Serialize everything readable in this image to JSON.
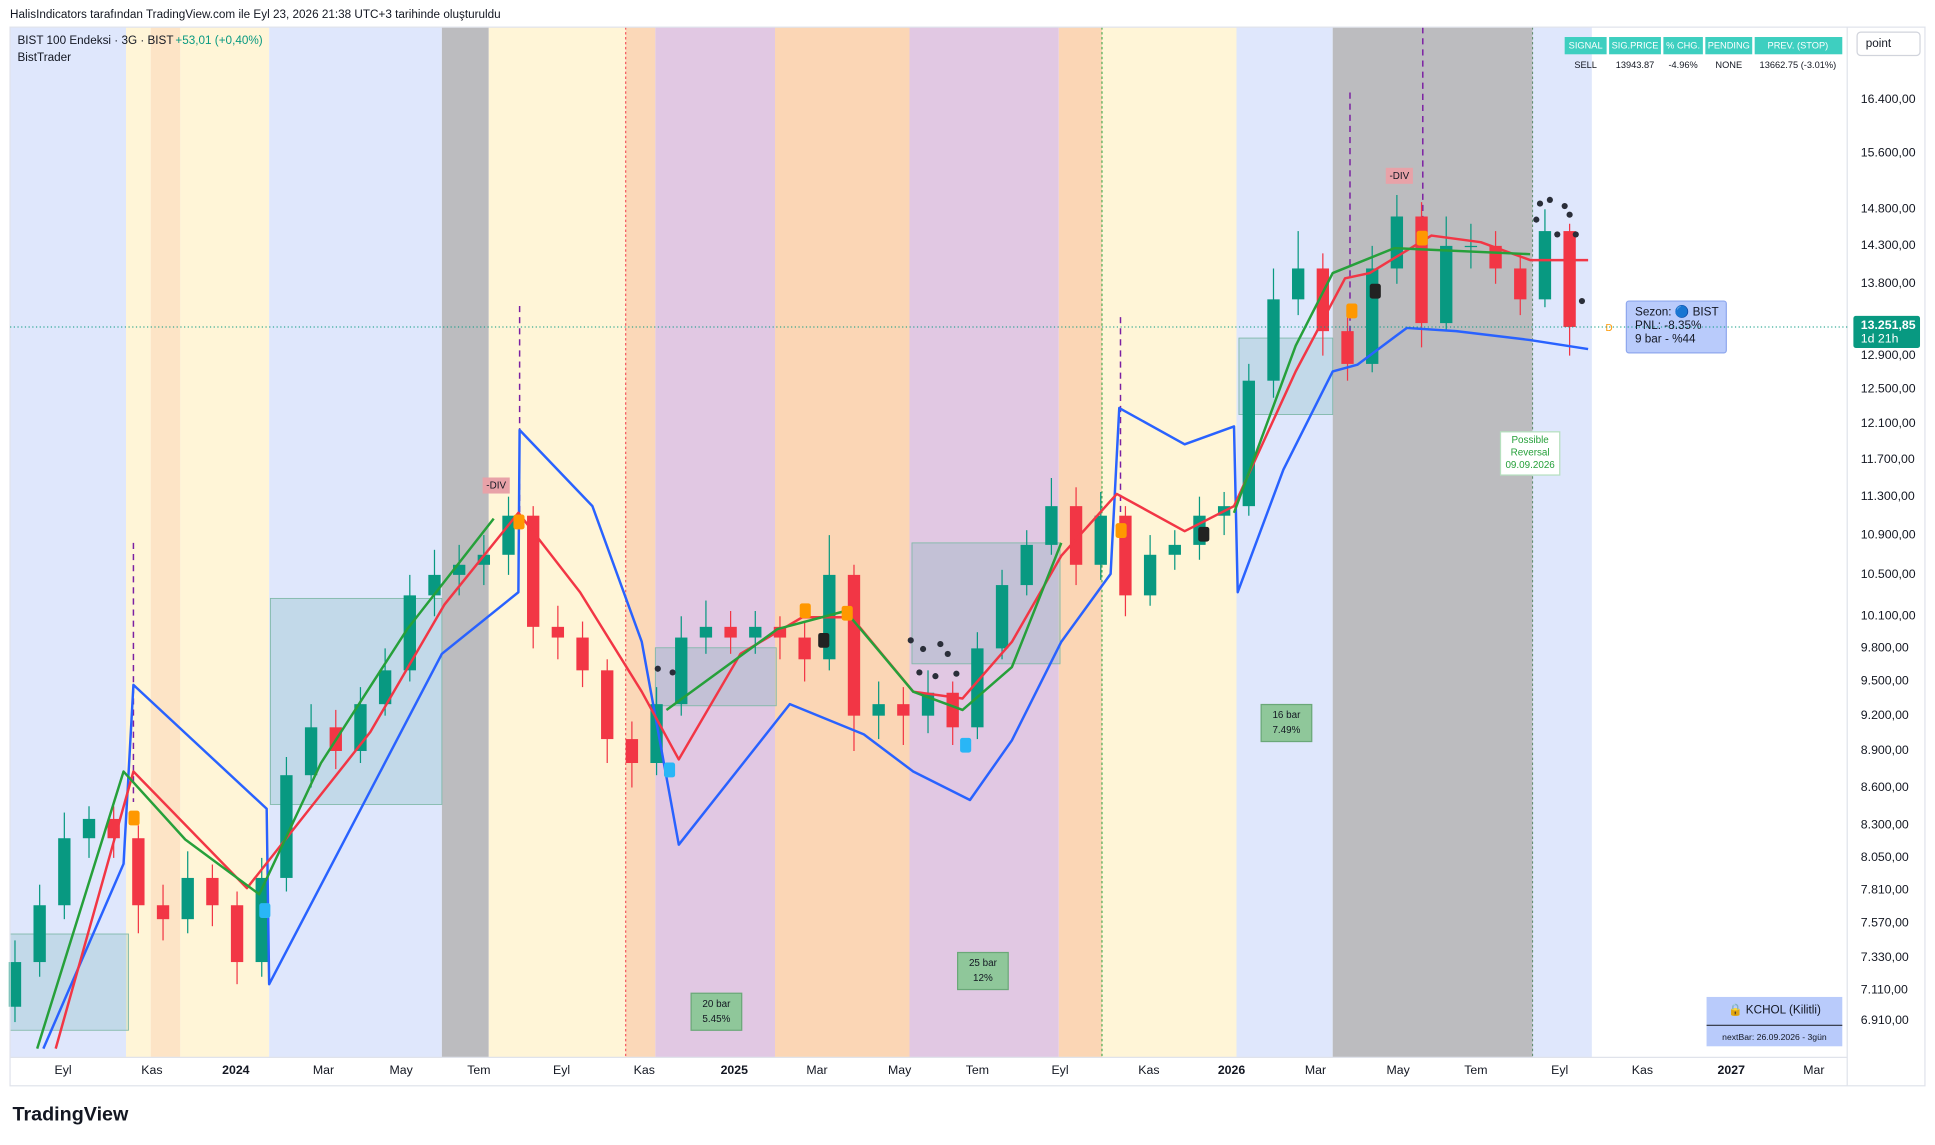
{
  "header": {
    "attribution": "HalisIndicators tarafından TradingView.com ile Eyl 23, 2026 21:38 UTC+3 tarihinde oluşturuldu",
    "symbol": "BIST 100 Endeksi · 3G · BIST",
    "change": "+53,01 (+0,40%)",
    "indicator": "BistTrader"
  },
  "toolbar": {
    "button": "point"
  },
  "signal_table": {
    "headers": [
      "SIGNAL",
      "SIG.PRICE",
      "% CHG.",
      "PENDING",
      "PREV. (STOP)"
    ],
    "row": [
      "SELL",
      "13943.87",
      "-4.96%",
      "NONE",
      "13662.75 (-3.01%)"
    ]
  },
  "annotations": {
    "bar_boxes": [
      [
        "20 bar",
        "5.45%"
      ],
      [
        "25 bar",
        "12%"
      ],
      [
        "16 bar",
        "7.49%"
      ]
    ],
    "divergence": [
      "-DIV",
      "-DIV"
    ],
    "reversal": [
      "Possible",
      "Reversal",
      "09.09.2026"
    ],
    "marker": "D"
  },
  "sezon_box": [
    "Sezon: 🔵 BIST",
    "PNL: -8.35%",
    "9 bar - %44"
  ],
  "lock_box": {
    "title": "🔒 KCHOL (Kilitli)",
    "next_bar": "nextBar:  26.09.2026 - 3gün"
  },
  "footer": {
    "logo": "TradingView"
  },
  "chart_data": {
    "type": "candlestick",
    "log_scale": true,
    "up_color": "#089981",
    "down_color": "#f23645",
    "x": [
      0,
      1,
      2,
      3,
      4,
      5,
      6,
      7,
      8,
      9,
      10,
      11,
      12,
      13,
      14,
      15,
      16,
      17,
      18,
      19,
      20,
      21,
      22,
      23,
      24,
      25,
      26,
      27,
      28,
      29,
      30,
      31,
      32,
      33,
      34,
      35,
      36,
      37,
      38,
      39,
      40,
      41,
      42,
      43,
      44,
      45,
      46,
      47,
      48,
      49,
      50,
      51,
      52,
      53,
      54,
      55,
      56,
      57,
      58,
      59,
      60,
      61,
      62,
      63
    ],
    "open": [
      7000,
      7300,
      7700,
      8200,
      8350,
      8200,
      7700,
      7600,
      7900,
      7700,
      7300,
      7900,
      8700,
      9100,
      8900,
      9300,
      9600,
      10300,
      10500,
      10600,
      10700,
      11100,
      10000,
      9900,
      9600,
      9000,
      8800,
      9300,
      9900,
      10000,
      9900,
      10000,
      9900,
      9700,
      10500,
      9200,
      9300,
      9200,
      9400,
      9100,
      9800,
      10400,
      10800,
      11200,
      10600,
      11100,
      10300,
      10700,
      10800,
      11100,
      11200,
      12600,
      13600,
      14000,
      13200,
      12800,
      14000,
      14700,
      13300,
      14300,
      14300,
      14000,
      13600,
      14500
    ],
    "high": [
      7450,
      7850,
      8400,
      8450,
      8450,
      8300,
      7850,
      8100,
      8000,
      7800,
      8050,
      8850,
      9300,
      9250,
      9450,
      9800,
      10500,
      10750,
      10800,
      10900,
      11300,
      11200,
      10200,
      10050,
      9700,
      9150,
      9450,
      10100,
      10250,
      10150,
      10150,
      10100,
      10050,
      10900,
      10600,
      9500,
      9450,
      9600,
      9500,
      9950,
      10550,
      10950,
      11500,
      11400,
      11350,
      11200,
      10900,
      10950,
      11300,
      11350,
      12800,
      14000,
      14500,
      14200,
      13400,
      14300,
      15000,
      14900,
      14700,
      14600,
      14500,
      14200,
      14800,
      14600
    ],
    "low": [
      6900,
      7200,
      7600,
      8050,
      8050,
      7500,
      7450,
      7500,
      7550,
      7150,
      7200,
      7800,
      8600,
      8750,
      8800,
      9200,
      9500,
      10100,
      10300,
      10400,
      10500,
      9800,
      9700,
      9450,
      8800,
      8600,
      8700,
      9200,
      9750,
      9750,
      9750,
      9700,
      9500,
      9600,
      8900,
      9000,
      8950,
      9050,
      8950,
      9000,
      9700,
      10300,
      10700,
      10400,
      10450,
      10100,
      10200,
      10550,
      10650,
      10900,
      11100,
      12400,
      13400,
      12900,
      12600,
      12700,
      13800,
      13000,
      13200,
      14000,
      13800,
      13400,
      13500,
      12900
    ],
    "close": [
      7300,
      7700,
      8200,
      8350,
      8200,
      7700,
      7600,
      7900,
      7700,
      7300,
      7900,
      8700,
      9100,
      8900,
      9300,
      9600,
      10300,
      10500,
      10600,
      10700,
      11100,
      10000,
      9900,
      9600,
      9000,
      8800,
      9300,
      9900,
      10000,
      9900,
      10000,
      9900,
      9700,
      10500,
      9200,
      9300,
      9200,
      9400,
      9100,
      9800,
      10400,
      10800,
      11200,
      10600,
      11100,
      10300,
      10700,
      10800,
      11100,
      11200,
      12600,
      13600,
      14000,
      13200,
      12800,
      14000,
      14700,
      13300,
      14300,
      14300,
      14000,
      13600,
      14500,
      13251.85
    ],
    "series": [
      {
        "color": "#2962ff",
        "x": [
          1.15,
          4.4,
          4.8,
          10.2,
          10.3,
          17.3,
          20.4,
          20.45,
          23.4,
          25.4,
          26.9,
          31.4,
          34.4,
          36.4,
          38.7,
          40.4,
          42.4,
          44.4,
          44.75,
          47.4,
          49.4,
          49.55,
          51.4,
          53.4,
          54.4,
          56.4,
          58.4,
          61.4,
          63.75
        ],
        "values": [
          6730,
          8005,
          9470,
          8430,
          7150,
          9750,
          10330,
          12030,
          11200,
          9860,
          8150,
          9300,
          9040,
          8730,
          8500,
          8990,
          9860,
          10510,
          12280,
          11870,
          12070,
          10330,
          11590,
          12710,
          12790,
          13240,
          13200,
          13090,
          12980
        ]
      },
      {
        "color": "#f23645",
        "x": [
          1.65,
          4.8,
          9.4,
          14.4,
          17.4,
          20.4,
          22.9,
          25.4,
          26.9,
          29.4,
          31.9,
          33.9,
          36.4,
          38.4,
          40.4,
          42.4,
          44.65,
          47.4,
          49.4,
          51.9,
          53.9,
          54.9,
          57.4,
          59.4,
          61.4,
          63.75
        ],
        "values": [
          6730,
          8730,
          7825,
          9060,
          10210,
          11130,
          10330,
          9410,
          8830,
          9750,
          10090,
          10090,
          9410,
          9350,
          9860,
          10690,
          11330,
          10940,
          11200,
          12710,
          13870,
          13940,
          14440,
          14350,
          14110,
          14110
        ]
      },
      {
        "color": "#26a03a",
        "x": [
          0.9,
          4.4,
          6.9,
          9.9,
          12.4,
          15.9,
          19.4,
          20.4,
          26.4,
          30.9,
          33.65,
          36.4,
          38.4,
          40.4,
          42.4,
          44.6,
          49.4,
          51.9,
          53.4,
          55.9,
          61.4
        ],
        "values": [
          6730,
          8730,
          8190,
          7780,
          8800,
          9980,
          11070,
          null,
          9250,
          9980,
          10150,
          9410,
          9250,
          9630,
          10820,
          null,
          11130,
          13020,
          13940,
          14270,
          14190
        ]
      }
    ],
    "xlim": [
      -0.2,
      74.25
    ],
    "xticks": [
      {
        "value": 1.95,
        "label": "Eyl"
      },
      {
        "value": 5.55,
        "label": "Kas"
      },
      {
        "value": 8.95,
        "label": "2024"
      },
      {
        "value": 12.5,
        "label": "Mar"
      },
      {
        "value": 15.65,
        "label": "May"
      },
      {
        "value": 18.8,
        "label": "Tem"
      },
      {
        "value": 22.15,
        "label": "Eyl"
      },
      {
        "value": 25.5,
        "label": "Kas"
      },
      {
        "value": 29.15,
        "label": "2025"
      },
      {
        "value": 32.5,
        "label": "Mar"
      },
      {
        "value": 35.85,
        "label": "May"
      },
      {
        "value": 39,
        "label": "Tem"
      },
      {
        "value": 42.35,
        "label": "Eyl"
      },
      {
        "value": 45.95,
        "label": "Kas"
      },
      {
        "value": 49.3,
        "label": "2026"
      },
      {
        "value": 52.7,
        "label": "Mar"
      },
      {
        "value": 56.05,
        "label": "May"
      },
      {
        "value": 59.2,
        "label": "Tem"
      },
      {
        "value": 62.6,
        "label": "Eyl"
      },
      {
        "value": 65.95,
        "label": "Kas"
      },
      {
        "value": 69.55,
        "label": "2027"
      },
      {
        "value": 72.9,
        "label": "Mar"
      }
    ],
    "ylim": [
      6675,
      17560
    ],
    "yticks": [
      {
        "value": 16400,
        "label": "16.400,00"
      },
      {
        "value": 15600,
        "label": "15.600,00"
      },
      {
        "value": 14800,
        "label": "14.800,00"
      },
      {
        "value": 14300,
        "label": "14.300,00"
      },
      {
        "value": 13800,
        "label": "13.800,00"
      },
      {
        "value": 12900,
        "label": "12.900,00"
      },
      {
        "value": 12500,
        "label": "12.500,00"
      },
      {
        "value": 12100,
        "label": "12.100,00"
      },
      {
        "value": 11700,
        "label": "11.700,00"
      },
      {
        "value": 11300,
        "label": "11.300,00"
      },
      {
        "value": 10900,
        "label": "10.900,00"
      },
      {
        "value": 10500,
        "label": "10.500,00"
      },
      {
        "value": 10100,
        "label": "10.100,00"
      },
      {
        "value": 9800,
        "label": "9.800,00"
      },
      {
        "value": 9500,
        "label": "9.500,00"
      },
      {
        "value": 9200,
        "label": "9.200,00"
      },
      {
        "value": 8900,
        "label": "8.900,00"
      },
      {
        "value": 8600,
        "label": "8.600,00"
      },
      {
        "value": 8300,
        "label": "8.300,00"
      },
      {
        "value": 8050,
        "label": "8.050,00"
      },
      {
        "value": 7810,
        "label": "7.810,00"
      },
      {
        "value": 7570,
        "label": "7.570,00"
      },
      {
        "value": 7330,
        "label": "7.330,00"
      },
      {
        "value": 7110,
        "label": "7.110,00"
      },
      {
        "value": 6910,
        "label": "6.910,00"
      }
    ],
    "last_price": {
      "value": 13251.85,
      "label": "13.251,85"
    },
    "countdown": "1d 21h"
  }
}
